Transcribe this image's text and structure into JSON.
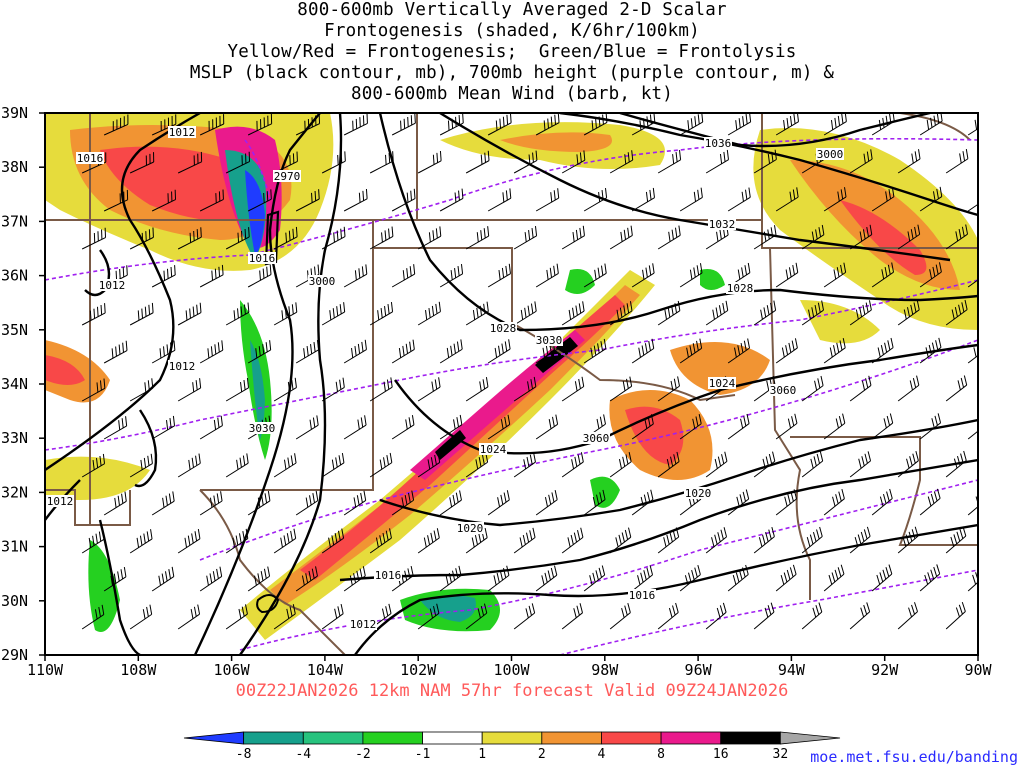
{
  "title_lines": [
    "800-600mb Vertically Averaged 2-D Scalar",
    "Frontogenesis (shaded, K/6hr/100km)",
    "Yellow/Red = Frontogenesis;  Green/Blue = Frontolysis",
    "MSLP (black contour, mb), 700mb height (purple contour, m) &",
    "800-600mb Mean Wind (barb, kt)"
  ],
  "lat_labels": [
    "39N",
    "38N",
    "37N",
    "36N",
    "35N",
    "34N",
    "33N",
    "32N",
    "31N",
    "30N",
    "29N"
  ],
  "lon_labels": [
    "110W",
    "108W",
    "106W",
    "104W",
    "102W",
    "100W",
    "98W",
    "96W",
    "94W",
    "92W",
    "90W"
  ],
  "subtitle": "00Z22JAN2026 12km NAM 57hr forecast Valid 09Z24JAN2026",
  "colorbar": {
    "colors": [
      "#1f3cff",
      "#16a08c",
      "#27c37e",
      "#25d020",
      "#ffffff",
      "#e6dc3c",
      "#f19433",
      "#f84848",
      "#ea1a8c",
      "#000000",
      "#a6a6a6"
    ],
    "labels": [
      "-8",
      "-4",
      "-2",
      "-1",
      "1",
      "2",
      "4",
      "8",
      "16",
      "32"
    ]
  },
  "mslp_labels": [
    "1012",
    "1016",
    "1012",
    "1012",
    "1012",
    "1016",
    "1012",
    "1020",
    "1024",
    "1028",
    "1028",
    "1032",
    "1036",
    "1024",
    "1020",
    "1016",
    "1016"
  ],
  "height_labels": [
    "2970",
    "3000",
    "3030",
    "3030",
    "3060",
    "3060",
    "3000"
  ],
  "credit": "moe.met.fsu.edu/banding",
  "colors": {
    "mslp": "#000000",
    "height": "#a020f0",
    "borders": "#7a5a46",
    "subtitle": "#ff5a5a"
  }
}
